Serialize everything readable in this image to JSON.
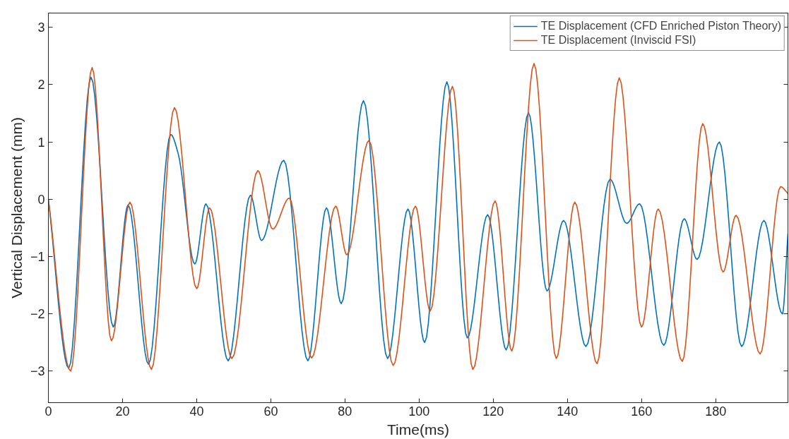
{
  "chart_data": {
    "type": "line",
    "xlabel": "Time(ms)",
    "ylabel": "Vertical Displacement (mm)",
    "xlim": [
      0,
      199.5
    ],
    "ylim": [
      -3.55,
      3.25
    ],
    "xticks": [
      0,
      20,
      40,
      60,
      80,
      100,
      120,
      140,
      160,
      180
    ],
    "yticks": [
      -3,
      -2,
      -1,
      0,
      1,
      2,
      3
    ],
    "grid": false,
    "legend": "top right",
    "marker": "none",
    "line_style": "solid",
    "series": [
      {
        "name": "TE Displacement (CFD Enriched Piston Theory)",
        "color": "#0072bd",
        "x": [
          0,
          5.5,
          11.5,
          17.5,
          21.5,
          27,
          33,
          35,
          39.5,
          42.5,
          48.5,
          54.5,
          57.5,
          63.5,
          70,
          75,
          79,
          85,
          91.5,
          97,
          101.5,
          107.5,
          113,
          118.5,
          123.5,
          129.5,
          134.5,
          139,
          145,
          151.5,
          156,
          159.5,
          166,
          171.5,
          175,
          181,
          187,
          193,
          198,
          199.5
        ],
        "values": [
          0,
          -2.95,
          2.13,
          -2.23,
          -0.1,
          -2.88,
          1.13,
          0.8,
          -1.13,
          -0.08,
          -2.82,
          0.07,
          -0.72,
          0.68,
          -2.82,
          -0.15,
          -1.82,
          1.72,
          -2.78,
          -0.17,
          -2.5,
          2.05,
          -2.42,
          -0.27,
          -2.63,
          1.51,
          -1.6,
          -0.37,
          -2.57,
          0.35,
          -0.42,
          -0.08,
          -2.55,
          -0.34,
          -1.05,
          1.0,
          -2.57,
          -0.37,
          -2.0,
          -0.6
        ]
      },
      {
        "name": "TE Displacement (Inviscid FSI)",
        "color": "#d95319",
        "x": [
          0,
          6,
          11.8,
          17,
          22,
          27.8,
          34,
          40,
          43.5,
          49.5,
          56.5,
          60.5,
          65,
          71,
          77.5,
          80.5,
          86.5,
          93,
          99,
          103,
          109,
          114.5,
          120.5,
          125,
          131,
          137,
          142,
          148,
          154,
          160,
          164.5,
          171,
          176.5,
          182,
          185.5,
          192,
          197.5,
          199.5
        ],
        "values": [
          0,
          -3.0,
          2.3,
          -2.47,
          -0.05,
          -2.97,
          1.6,
          -1.56,
          -0.15,
          -2.78,
          0.5,
          -0.52,
          0.02,
          -2.77,
          -0.12,
          -0.97,
          1.03,
          -2.9,
          -0.12,
          -1.95,
          1.97,
          -2.97,
          -0.03,
          -2.65,
          2.37,
          -2.78,
          -0.05,
          -2.87,
          2.12,
          -2.23,
          -0.17,
          -2.83,
          1.32,
          -1.27,
          -0.28,
          -2.7,
          0.22,
          0.1
        ]
      }
    ]
  }
}
